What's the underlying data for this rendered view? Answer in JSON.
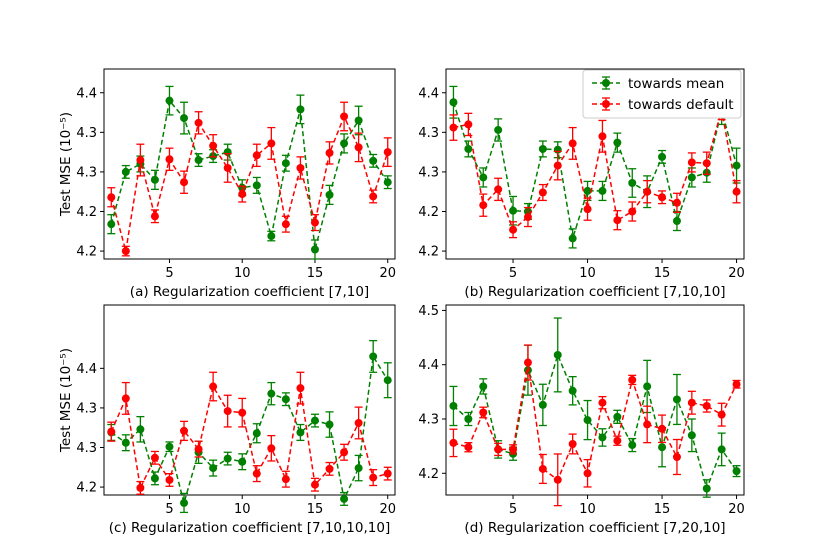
{
  "legend": {
    "placement": "top-right of panel b",
    "entries": [
      {
        "label": "towards mean",
        "color": "#008000"
      },
      {
        "label": "towards default",
        "color": "#ff0000"
      }
    ]
  },
  "ylabel": "Test MSE (10⁻⁵)",
  "chart_data": [
    {
      "type": "line",
      "id": "a",
      "xlabel": "(a) Regularization coefficient [7,10]",
      "ylabel": "Test MSE (10⁻⁵)",
      "xlim": [
        0.5,
        20.5
      ],
      "ylim": [
        4.19,
        4.43
      ],
      "xticks": [
        5,
        10,
        15,
        20
      ],
      "yticks": [
        {
          "value": 4.2,
          "label": "4.2"
        },
        {
          "value": 4.25,
          "label": "4.2"
        },
        {
          "value": 4.3,
          "label": "4.3"
        },
        {
          "value": 4.35,
          "label": "4.3"
        },
        {
          "value": 4.4,
          "label": "4.4"
        }
      ],
      "x": [
        1,
        2,
        3,
        4,
        5,
        6,
        7,
        8,
        9,
        10,
        11,
        12,
        13,
        14,
        15,
        16,
        17,
        18,
        19,
        20
      ],
      "series": [
        {
          "name": "towards mean",
          "color": "#008000",
          "values": [
            4.234,
            4.3,
            4.31,
            4.29,
            4.39,
            4.368,
            4.315,
            4.32,
            4.325,
            4.28,
            4.283,
            4.219,
            4.311,
            4.379,
            4.202,
            4.271,
            4.336,
            4.365,
            4.314,
            4.287
          ],
          "errors": [
            0.012,
            0.008,
            0.01,
            0.012,
            0.018,
            0.02,
            0.008,
            0.008,
            0.01,
            0.01,
            0.01,
            0.006,
            0.01,
            0.018,
            0.012,
            0.012,
            0.012,
            0.018,
            0.008,
            0.008
          ]
        },
        {
          "name": "towards default",
          "color": "#ff0000",
          "values": [
            4.268,
            4.2,
            4.315,
            4.244,
            4.316,
            4.287,
            4.362,
            4.333,
            4.305,
            4.272,
            4.321,
            4.336,
            4.234,
            4.305,
            4.236,
            4.324,
            4.37,
            4.331,
            4.269,
            4.325
          ],
          "errors": [
            0.012,
            0.006,
            0.02,
            0.008,
            0.014,
            0.014,
            0.014,
            0.014,
            0.018,
            0.01,
            0.014,
            0.02,
            0.01,
            0.014,
            0.01,
            0.014,
            0.018,
            0.018,
            0.008,
            0.018
          ]
        }
      ]
    },
    {
      "type": "line",
      "id": "b",
      "xlabel": "(b) Regularization coefficient [7,10,10]",
      "ylabel": "",
      "xlim": [
        0.5,
        20.5
      ],
      "ylim": [
        4.19,
        4.43
      ],
      "xticks": [
        5,
        10,
        15,
        20
      ],
      "yticks": [
        {
          "value": 4.2,
          "label": "4.2"
        },
        {
          "value": 4.25,
          "label": "4.2"
        },
        {
          "value": 4.3,
          "label": "4.3"
        },
        {
          "value": 4.35,
          "label": "4.3"
        },
        {
          "value": 4.4,
          "label": "4.4"
        }
      ],
      "x": [
        1,
        2,
        3,
        4,
        5,
        6,
        7,
        8,
        9,
        10,
        11,
        12,
        13,
        14,
        15,
        16,
        17,
        18,
        19,
        20
      ],
      "series": [
        {
          "name": "towards mean",
          "color": "#008000",
          "values": [
            4.388,
            4.329,
            4.293,
            4.353,
            4.251,
            4.25,
            4.329,
            4.328,
            4.216,
            4.276,
            4.276,
            4.337,
            4.286,
            4.275,
            4.319,
            4.238,
            4.293,
            4.299,
            4.378,
            4.308
          ],
          "errors": [
            0.02,
            0.01,
            0.012,
            0.014,
            0.018,
            0.01,
            0.01,
            0.01,
            0.012,
            0.012,
            0.012,
            0.012,
            0.018,
            0.02,
            0.008,
            0.012,
            0.012,
            0.012,
            0.018,
            0.022
          ]
        },
        {
          "name": "towards default",
          "color": "#ff0000",
          "values": [
            4.356,
            4.36,
            4.258,
            4.278,
            4.227,
            4.243,
            4.274,
            4.308,
            4.336,
            4.253,
            4.345,
            4.239,
            4.25,
            4.275,
            4.268,
            4.261,
            4.312,
            4.311,
            4.378,
            4.275
          ],
          "errors": [
            0.016,
            0.014,
            0.014,
            0.014,
            0.01,
            0.012,
            0.01,
            0.018,
            0.02,
            0.014,
            0.02,
            0.012,
            0.012,
            0.014,
            0.008,
            0.012,
            0.012,
            0.014,
            0.012,
            0.014
          ]
        }
      ]
    },
    {
      "type": "line",
      "id": "c",
      "xlabel": "(c) Regularization coefficient [7,10,10,10]",
      "ylabel": "Test MSE (10⁻⁵)",
      "xlim": [
        0.5,
        20.5
      ],
      "ylim": [
        4.19,
        4.43
      ],
      "xticks": [
        5,
        10,
        15,
        20
      ],
      "yticks": [
        {
          "value": 4.2,
          "label": "4.2"
        },
        {
          "value": 4.25,
          "label": "4.3"
        },
        {
          "value": 4.3,
          "label": "4.3"
        },
        {
          "value": 4.35,
          "label": "4.4"
        }
      ],
      "x": [
        1,
        2,
        3,
        4,
        5,
        6,
        7,
        8,
        9,
        10,
        11,
        12,
        13,
        14,
        15,
        16,
        17,
        18,
        19,
        20
      ],
      "series": [
        {
          "name": "towards mean",
          "color": "#008000",
          "values": [
            4.269,
            4.256,
            4.273,
            4.211,
            4.251,
            4.18,
            4.244,
            4.224,
            4.236,
            4.232,
            4.268,
            4.318,
            4.311,
            4.269,
            4.284,
            4.279,
            4.185,
            4.224,
            4.365,
            4.335
          ],
          "errors": [
            0.01,
            0.01,
            0.016,
            0.008,
            0.006,
            0.012,
            0.014,
            0.01,
            0.008,
            0.01,
            0.012,
            0.014,
            0.008,
            0.01,
            0.008,
            0.016,
            0.008,
            0.016,
            0.02,
            0.022
          ]
        },
        {
          "name": "towards default",
          "color": "#ff0000",
          "values": [
            4.27,
            4.312,
            4.199,
            4.237,
            4.209,
            4.271,
            4.248,
            4.327,
            4.296,
            4.294,
            4.217,
            4.249,
            4.21,
            4.325,
            4.203,
            4.223,
            4.244,
            4.281,
            4.212,
            4.217
          ],
          "errors": [
            0.012,
            0.02,
            0.008,
            0.008,
            0.008,
            0.012,
            0.01,
            0.018,
            0.02,
            0.018,
            0.01,
            0.016,
            0.01,
            0.02,
            0.008,
            0.008,
            0.01,
            0.02,
            0.01,
            0.008
          ]
        }
      ]
    },
    {
      "type": "line",
      "id": "d",
      "xlabel": "(d) Regularization coefficient [7,20,10]",
      "ylabel": "",
      "xlim": [
        0.5,
        20.5
      ],
      "ylim": [
        4.16,
        4.51
      ],
      "xticks": [
        5,
        10,
        15,
        20
      ],
      "yticks": [
        {
          "value": 4.2,
          "label": "4.2"
        },
        {
          "value": 4.3,
          "label": "4.3"
        },
        {
          "value": 4.4,
          "label": "4.4"
        },
        {
          "value": 4.5,
          "label": "4.5"
        }
      ],
      "x": [
        1,
        2,
        3,
        4,
        5,
        6,
        7,
        8,
        9,
        10,
        11,
        12,
        13,
        14,
        15,
        16,
        17,
        18,
        19,
        20
      ],
      "series": [
        {
          "name": "towards mean",
          "color": "#008000",
          "values": [
            4.324,
            4.3,
            4.36,
            4.244,
            4.236,
            4.39,
            4.326,
            4.418,
            4.352,
            4.298,
            4.266,
            4.304,
            4.252,
            4.36,
            4.248,
            4.336,
            4.27,
            4.172,
            4.244,
            4.204
          ],
          "errors": [
            0.036,
            0.012,
            0.014,
            0.016,
            0.012,
            0.046,
            0.038,
            0.068,
            0.026,
            0.036,
            0.016,
            0.012,
            0.012,
            0.048,
            0.036,
            0.046,
            0.03,
            0.016,
            0.03,
            0.01
          ]
        },
        {
          "name": "towards default",
          "color": "#ff0000",
          "values": [
            4.256,
            4.248,
            4.312,
            4.244,
            4.244,
            4.404,
            4.208,
            4.188,
            4.254,
            4.2,
            4.33,
            4.26,
            4.372,
            4.29,
            4.282,
            4.23,
            4.33,
            4.324,
            4.308,
            4.364
          ]
        }
      ]
    }
  ]
}
